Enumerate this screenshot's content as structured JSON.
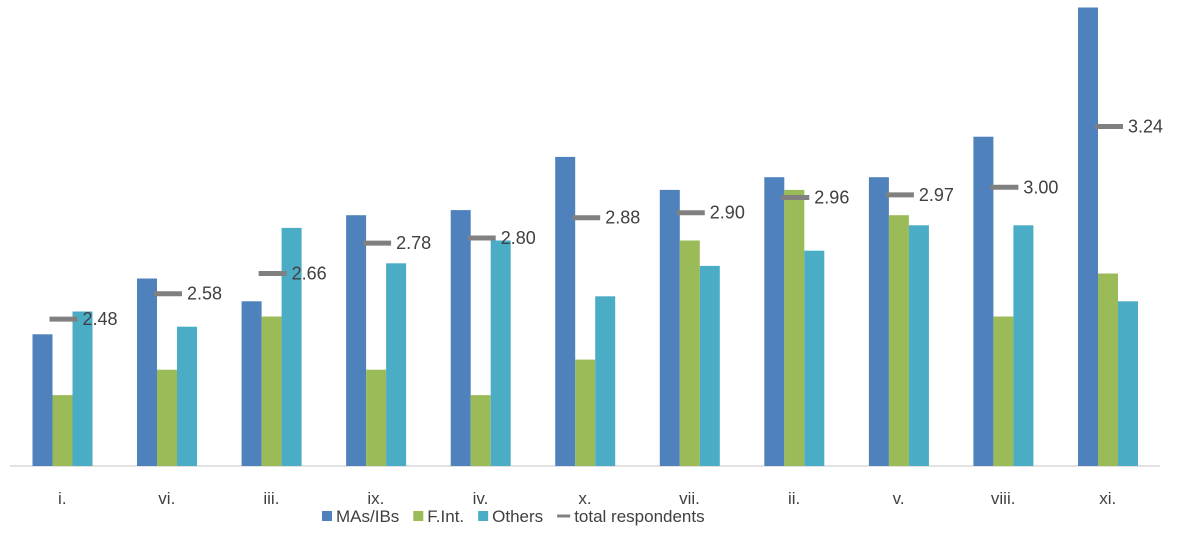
{
  "chart_data": {
    "type": "bar",
    "title": "",
    "xlabel": "",
    "ylabel": "",
    "categories": [
      "i.",
      "vi.",
      "iii.",
      "ix.",
      "iv.",
      "x.",
      "vii.",
      "ii.",
      "v.",
      "viii.",
      "xi."
    ],
    "ylim": [
      1.9,
      3.7
    ],
    "series": [
      {
        "name": "MAs/IBs",
        "kind": "bar",
        "color": "#4F81BD",
        "values": [
          2.42,
          2.64,
          2.55,
          2.89,
          2.91,
          3.12,
          2.99,
          3.04,
          3.04,
          3.2,
          3.71
        ]
      },
      {
        "name": "F.Int.",
        "kind": "bar",
        "color": "#9BBB59",
        "values": [
          2.18,
          2.28,
          2.49,
          2.28,
          2.18,
          2.32,
          2.79,
          2.99,
          2.89,
          2.49,
          2.66
        ]
      },
      {
        "name": "Others",
        "kind": "bar",
        "color": "#4BACC6",
        "values": [
          2.51,
          2.45,
          2.84,
          2.7,
          2.79,
          2.57,
          2.69,
          2.75,
          2.85,
          2.85,
          2.55
        ]
      },
      {
        "name": "total respondents",
        "kind": "marker",
        "color": "#808080",
        "values": [
          2.48,
          2.58,
          2.66,
          2.78,
          2.8,
          2.88,
          2.9,
          2.96,
          2.97,
          3.0,
          3.24
        ],
        "labels": [
          "2.48",
          "2.58",
          "2.66",
          "2.78",
          "2.80",
          "2.88",
          "2.90",
          "2.96",
          "2.97",
          "3.00",
          "3.24"
        ]
      }
    ],
    "legend": {
      "position": "bottom",
      "items": [
        {
          "label": "MAs/IBs",
          "color": "#4F81BD",
          "symbol": "square"
        },
        {
          "label": "F.Int.",
          "color": "#9BBB59",
          "symbol": "square"
        },
        {
          "label": "Others",
          "color": "#4BACC6",
          "symbol": "square"
        },
        {
          "label": "total respondents",
          "color": "#808080",
          "symbol": "line"
        }
      ]
    },
    "grid": false,
    "axis_line_color": "#D9D9D9"
  }
}
